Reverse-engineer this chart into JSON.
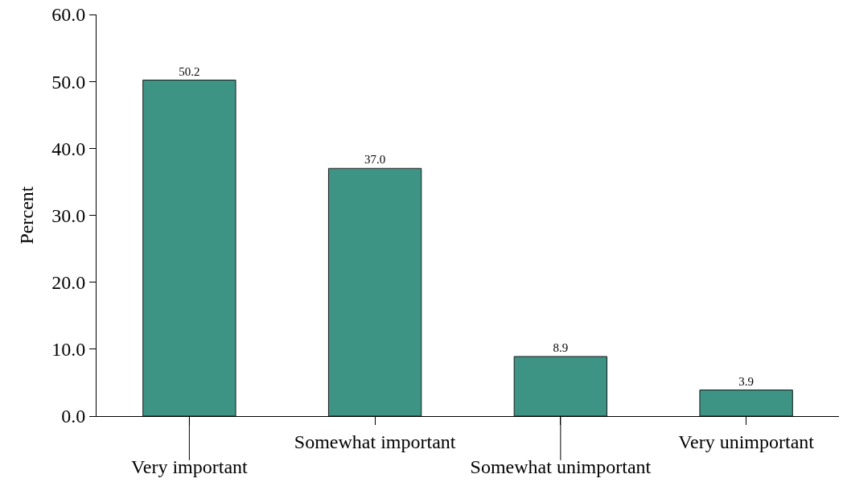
{
  "chart_data": {
    "type": "bar",
    "ylabel": "Percent",
    "categories": [
      "Very important",
      "Somewhat important",
      "Somewhat unimportant",
      "Very unimportant"
    ],
    "values": [
      50.2,
      37.0,
      8.9,
      3.9
    ],
    "value_labels": [
      "50.2",
      "37.0",
      "8.9",
      "3.9"
    ],
    "color": "#3d9484",
    "ylim": [
      0,
      60
    ],
    "yticks": [
      {
        "value": 0,
        "label": "0.0"
      },
      {
        "value": 10,
        "label": "10.0"
      },
      {
        "value": 20,
        "label": "20.0"
      },
      {
        "value": 30,
        "label": "30.0"
      },
      {
        "value": 40,
        "label": "40.0"
      },
      {
        "value": 50,
        "label": "50.0"
      },
      {
        "value": 60,
        "label": "60.0"
      }
    ],
    "data_labels": true
  }
}
